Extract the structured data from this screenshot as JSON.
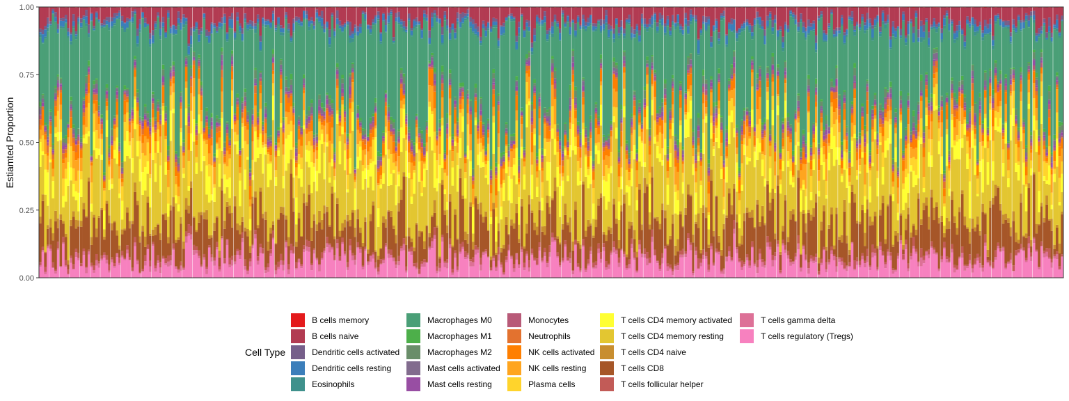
{
  "chart_data": {
    "type": "stacked-bar",
    "title": "",
    "xlabel": "",
    "ylabel": "Estiamted Proportion",
    "ylim": [
      0,
      1
    ],
    "yticks": [
      "0.00",
      "0.25",
      "0.50",
      "0.75",
      "1.00"
    ],
    "n_samples": 400,
    "x_tick_labels_shown": false,
    "legend_title": "Cell Type",
    "legend_position": "bottom",
    "series": [
      {
        "name": "B cells memory",
        "color": "#E41A1C",
        "mean": 0.001
      },
      {
        "name": "B cells naive",
        "color": "#B23B52",
        "mean": 0.045
      },
      {
        "name": "Dendritic cells activated",
        "color": "#765F8A",
        "mean": 0.012
      },
      {
        "name": "Dendritic cells resting",
        "color": "#3B7EBA",
        "mean": 0.014
      },
      {
        "name": "Eosinophils",
        "color": "#3F918C",
        "mean": 0.006
      },
      {
        "name": "Macrophages M0",
        "color": "#4A9F77",
        "mean": 0.285
      },
      {
        "name": "Macrophages M1",
        "color": "#4DAF4A",
        "mean": 0.008
      },
      {
        "name": "Macrophages M2",
        "color": "#6A8E6A",
        "mean": 0.012
      },
      {
        "name": "Mast cells activated",
        "color": "#826C8E",
        "mean": 0.01
      },
      {
        "name": "Mast cells resting",
        "color": "#984EA3",
        "mean": 0.008
      },
      {
        "name": "Monocytes",
        "color": "#B85A78",
        "mean": 0.008
      },
      {
        "name": "Neutrophils",
        "color": "#E3722F",
        "mean": 0.012
      },
      {
        "name": "NK cells activated",
        "color": "#FF7F00",
        "mean": 0.026
      },
      {
        "name": "NK cells resting",
        "color": "#FFA51F",
        "mean": 0.036
      },
      {
        "name": "Plasma cells",
        "color": "#FFD42C",
        "mean": 0.04
      },
      {
        "name": "T cells CD4 memory activated",
        "color": "#FFFF33",
        "mean": 0.055
      },
      {
        "name": "T cells CD4 memory resting",
        "color": "#E3C631",
        "mean": 0.16
      },
      {
        "name": "T cells CD4 naive",
        "color": "#C88E2F",
        "mean": 0.02
      },
      {
        "name": "T cells CD8",
        "color": "#A65628",
        "mean": 0.1
      },
      {
        "name": "T cells follicular helper",
        "color": "#C25B57",
        "mean": 0.012
      },
      {
        "name": "T cells gamma delta",
        "color": "#DD7197",
        "mean": 0.01
      },
      {
        "name": "T cells regulatory (Tregs)",
        "color": "#F781BF",
        "mean": 0.06
      }
    ]
  }
}
